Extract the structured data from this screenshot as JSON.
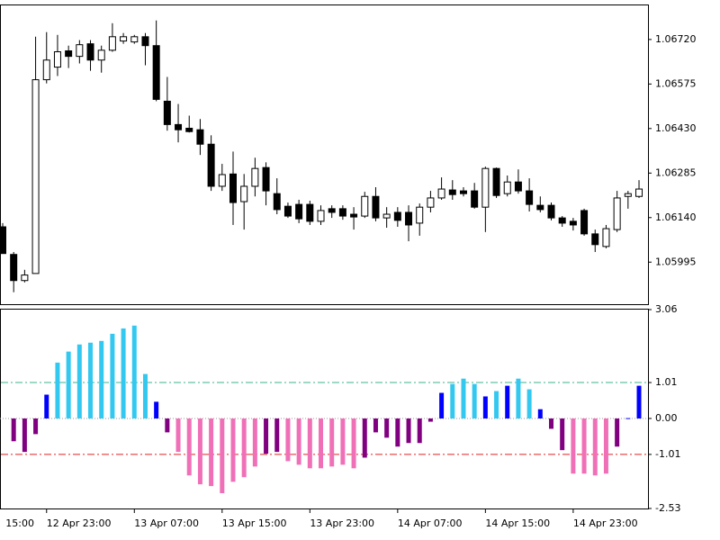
{
  "chart_data": [
    {
      "type": "candlestick",
      "open": [
        1.0611,
        1.0602,
        1.05935,
        1.05958,
        1.06589,
        1.0663,
        1.06683,
        1.06665,
        1.06706,
        1.06653,
        1.06685,
        1.06715,
        1.06712,
        1.06729,
        1.067,
        1.06519,
        1.06443,
        1.06431,
        1.06426,
        1.06379,
        1.06242,
        1.06282,
        1.06192,
        1.06242,
        1.06303,
        1.06218,
        1.06177,
        1.06183,
        1.06183,
        1.06128,
        1.06169,
        1.06169,
        1.06151,
        1.06145,
        1.06209,
        1.06139,
        1.06157,
        1.06157,
        1.06122,
        1.06174,
        1.06204,
        1.0623,
        1.06227,
        1.06227,
        1.06174,
        1.063,
        1.06218,
        1.06256,
        1.06227,
        1.0618,
        1.0618,
        1.06139,
        1.06128,
        1.06163,
        1.06087,
        1.06046,
        1.06101,
        1.06209,
        1.06209
      ],
      "high": [
        1.06122,
        1.06028,
        1.0597,
        1.06729,
        1.06744,
        1.06735,
        1.067,
        1.06718,
        1.06718,
        1.067,
        1.06773,
        1.06741,
        1.06735,
        1.06741,
        1.06782,
        1.06598,
        1.0651,
        1.06472,
        1.06461,
        1.06408,
        1.06315,
        1.06355,
        1.06282,
        1.06335,
        1.0632,
        1.06268,
        1.06189,
        1.06198,
        1.06195,
        1.0618,
        1.0618,
        1.0618,
        1.06174,
        1.06224,
        1.06239,
        1.06174,
        1.06174,
        1.0618,
        1.06186,
        1.06227,
        1.06271,
        1.06262,
        1.06239,
        1.06253,
        1.06306,
        1.06303,
        1.06277,
        1.06297,
        1.06268,
        1.06209,
        1.06189,
        1.06145,
        1.06139,
        1.06169,
        1.06101,
        1.06116,
        1.06227,
        1.06227,
        1.06262
      ],
      "low": [
        1.06023,
        1.05897,
        1.05929,
        1.05958,
        1.06577,
        1.06601,
        1.06627,
        1.06642,
        1.06618,
        1.06612,
        1.0668,
        1.06706,
        1.06706,
        1.06636,
        1.06519,
        1.06423,
        1.06385,
        1.06417,
        1.06344,
        1.06227,
        1.06227,
        1.06116,
        1.06101,
        1.06209,
        1.0618,
        1.06151,
        1.06139,
        1.06122,
        1.06116,
        1.06116,
        1.06139,
        1.06133,
        1.06101,
        1.06139,
        1.06128,
        1.06107,
        1.0611,
        1.06063,
        1.06081,
        1.06157,
        1.06198,
        1.06198,
        1.06209,
        1.06169,
        1.06093,
        1.06204,
        1.06209,
        1.06218,
        1.0616,
        1.06157,
        1.06131,
        1.0611,
        1.06098,
        1.06081,
        1.06028,
        1.0604,
        1.06093,
        1.06169,
        1.06204
      ],
      "close": [
        1.06023,
        1.05935,
        1.05953,
        1.06589,
        1.06653,
        1.0668,
        1.06665,
        1.06703,
        1.06653,
        1.06685,
        1.06729,
        1.06729,
        1.06729,
        1.067,
        1.06525,
        1.06443,
        1.06426,
        1.0642,
        1.06379,
        1.06242,
        1.0628,
        1.06189,
        1.06242,
        1.063,
        1.06227,
        1.06166,
        1.06145,
        1.06136,
        1.06128,
        1.06163,
        1.06157,
        1.06145,
        1.06142,
        1.06209,
        1.06139,
        1.06151,
        1.06131,
        1.06116,
        1.06174,
        1.06204,
        1.06233,
        1.06215,
        1.06218,
        1.06174,
        1.063,
        1.06212,
        1.06256,
        1.06227,
        1.06183,
        1.06166,
        1.06139,
        1.06122,
        1.06116,
        1.06087,
        1.06052,
        1.06104,
        1.06204,
        1.06218,
        1.06233
      ],
      "up_color": "#ffffff",
      "down_color": "#000000",
      "ylim": [
        1.05858,
        1.06831
      ],
      "yticks": [
        {
          "value": 1.0672,
          "label": "1.06720"
        },
        1.06575,
        {
          "value": 1.0643,
          "label": "1.06430"
        },
        1.06285,
        {
          "value": 1.0614,
          "label": "1.06140"
        },
        1.05995
      ]
    },
    {
      "type": "bar",
      "categories": [
        null,
        null,
        null,
        null,
        "12 Apr 23:00",
        null,
        null,
        null,
        null,
        null,
        null,
        null,
        "13 Apr 07:00",
        null,
        null,
        null,
        null,
        null,
        null,
        null,
        "13 Apr 15:00",
        null,
        null,
        null,
        null,
        null,
        null,
        null,
        "13 Apr 23:00",
        null,
        null,
        null,
        null,
        null,
        null,
        null,
        "14 Apr 07:00",
        null,
        null,
        null,
        null,
        null,
        null,
        null,
        "14 Apr 15:00",
        null,
        null,
        null,
        null,
        null,
        null,
        null,
        "14 Apr 23:00",
        null,
        null,
        null,
        null,
        null,
        null
      ],
      "clipped_label": "15:00",
      "values": [
        null,
        -0.64,
        -0.94,
        -0.44,
        0.67,
        1.57,
        1.88,
        2.08,
        2.13,
        2.18,
        2.38,
        2.53,
        2.61,
        1.25,
        0.47,
        -0.39,
        -0.94,
        -1.6,
        -1.85,
        -1.9,
        -2.1,
        -1.78,
        -1.65,
        -1.35,
        -0.99,
        -0.94,
        -1.2,
        -1.3,
        -1.4,
        -1.4,
        -1.35,
        -1.3,
        -1.4,
        -1.1,
        -0.39,
        -0.54,
        -0.79,
        -0.69,
        -0.69,
        -0.09,
        0.72,
        0.97,
        1.12,
        0.97,
        0.62,
        0.77,
        0.92,
        1.12,
        0.82,
        0.26,
        -0.29,
        -0.89,
        -1.55,
        -1.55,
        -1.6,
        -1.55,
        -0.79,
        0.01,
        0.92
      ],
      "colors": [
        "#800080",
        "#800080",
        "#800080",
        "#800080",
        "#0000ff",
        "#33c8f0",
        "#33c8f0",
        "#33c8f0",
        "#33c8f0",
        "#33c8f0",
        "#33c8f0",
        "#33c8f0",
        "#33c8f0",
        "#33c8f0",
        "#0000ff",
        "#800080",
        "#f070b8",
        "#f070b8",
        "#f070b8",
        "#f070b8",
        "#f070b8",
        "#f070b8",
        "#f070b8",
        "#f070b8",
        "#800080",
        "#800080",
        "#f070b8",
        "#f070b8",
        "#f070b8",
        "#f070b8",
        "#f070b8",
        "#f070b8",
        "#f070b8",
        "#800080",
        "#800080",
        "#800080",
        "#800080",
        "#800080",
        "#800080",
        "#800080",
        "#0000ff",
        "#33c8f0",
        "#33c8f0",
        "#33c8f0",
        "#0000ff",
        "#33c8f0",
        "#0000ff",
        "#33c8f0",
        "#33c8f0",
        "#0000ff",
        "#800080",
        "#800080",
        "#f070b8",
        "#f070b8",
        "#f070b8",
        "#f070b8",
        "#800080",
        "#0000ff",
        "#0000ff"
      ],
      "levels": [
        {
          "value": 1.01,
          "color": "#3cb08c"
        },
        {
          "value": -1.01,
          "color": "#e02020"
        }
      ],
      "ylim": [
        -2.53,
        3.06
      ],
      "yticks": [
        3.06,
        1.01,
        {
          "value": 0,
          "label": "0.00"
        },
        -1.01,
        -2.53
      ]
    }
  ]
}
